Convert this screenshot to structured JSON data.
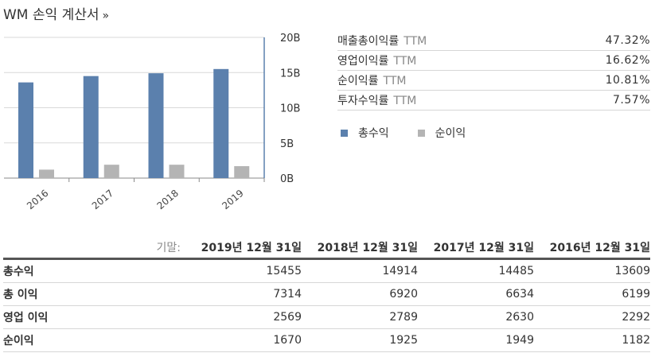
{
  "title": "WM 손익 계산서",
  "title_suffix": "»",
  "chart_data": {
    "type": "bar",
    "categories": [
      "2016",
      "2017",
      "2018",
      "2019"
    ],
    "series": [
      {
        "name": "총수익",
        "color": "#5b80ad",
        "values": [
          13.6,
          14.5,
          14.9,
          15.5
        ]
      },
      {
        "name": "순이익",
        "color": "#b4b4b4",
        "values": [
          1.2,
          1.9,
          1.9,
          1.7
        ]
      }
    ],
    "ylim": [
      0,
      20
    ],
    "yticks": [
      "0B",
      "5B",
      "10B",
      "15B",
      "20B"
    ],
    "grid": true,
    "legend": "below-right"
  },
  "ratios": [
    {
      "name": "매출총이익률",
      "ttm": "TTM",
      "value": "47.32%"
    },
    {
      "name": "영업이익률",
      "ttm": "TTM",
      "value": "16.62%"
    },
    {
      "name": "순이익률",
      "ttm": "TTM",
      "value": "10.81%"
    },
    {
      "name": "투자수익률",
      "ttm": "TTM",
      "value": "7.57%"
    }
  ],
  "legend": [
    {
      "label": "총수익",
      "color": "#5b80ad"
    },
    {
      "label": "순이익",
      "color": "#b4b4b4"
    }
  ],
  "table": {
    "period_label": "기말:",
    "columns": [
      "2019년 12월 31일",
      "2018년 12월 31일",
      "2017년 12월 31일",
      "2016년 12월 31일"
    ],
    "rows": [
      {
        "label": "총수익",
        "values": [
          "15455",
          "14914",
          "14485",
          "13609"
        ]
      },
      {
        "label": "총 이익",
        "values": [
          "7314",
          "6920",
          "6634",
          "6199"
        ]
      },
      {
        "label": "영업 이익",
        "values": [
          "2569",
          "2789",
          "2630",
          "2292"
        ]
      },
      {
        "label": "순이익",
        "values": [
          "1670",
          "1925",
          "1949",
          "1182"
        ]
      }
    ]
  }
}
